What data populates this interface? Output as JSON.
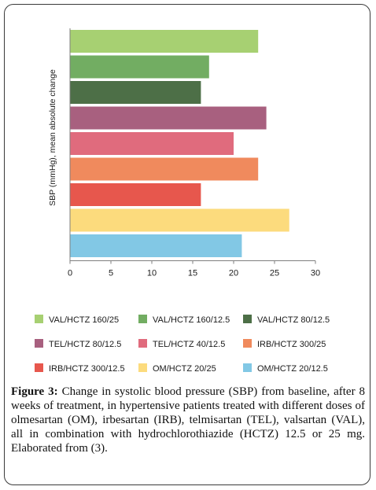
{
  "chart_data": {
    "type": "bar",
    "orientation": "horizontal",
    "categories": [
      "VAL/HCTZ 160/25",
      "VAL/HCTZ 160/12.5",
      "VAL/HCTZ 80/12.5",
      "TEL/HCTZ 80/12.5",
      "TEL/HCTZ 40/12.5",
      "IRB/HCTZ 300/25",
      "IRB/HCTZ 300/12.5",
      "OM/HCTZ 20/25",
      "OM/HCTZ 20/12.5"
    ],
    "values": [
      23,
      17,
      16,
      24,
      20,
      23,
      16,
      26.8,
      21
    ],
    "colors": [
      "#a7d072",
      "#72ad62",
      "#4d6f47",
      "#a8607f",
      "#e06b7d",
      "#f08a5d",
      "#e7574d",
      "#fcdb7d",
      "#82c8e5"
    ],
    "ylabel": "SBP (mmHg), mean absolute change",
    "xlabel": "",
    "xlim": [
      0,
      30
    ],
    "xticks": [
      0,
      5,
      10,
      15,
      20,
      25,
      30
    ],
    "grid": false,
    "legend_placement": "bottom"
  },
  "caption": {
    "label": "Figure 3:",
    "text": "Change in systolic blood pressure (SBP) from baseline, after 8 weeks of treatment, in hypertensive patients treated with different doses of olmesartan (OM), irbesartan (IRB), telmisartan (TEL), valsartan (VAL), all in combination with hydrochlorothiazide (HCTZ) 12.5 or 25 mg. Elaborated from (3)."
  }
}
